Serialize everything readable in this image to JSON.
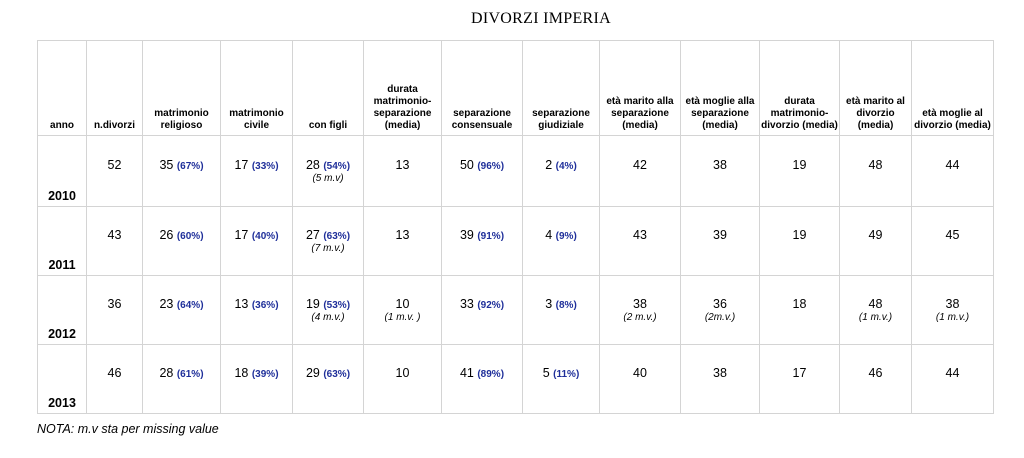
{
  "title": "DIVORZI IMPERIA",
  "headers": [
    "anno",
    "n.divorzi",
    "matrimonio religioso",
    "matrimonio civile",
    "con figli",
    "durata matrimonio-separazione (media)",
    "separazione consensuale",
    "separazione giudiziale",
    "età marito alla separazione (media)",
    "età moglie alla separazione (media)",
    "durata matrimonio-divorzio (media)",
    "età marito al divorzio (media)",
    "età moglie al divorzio (media)"
  ],
  "rows": [
    {
      "year": "2010",
      "n_divorzi": "52",
      "religioso": {
        "v": "35",
        "p": "(67%)"
      },
      "civile": {
        "v": "17",
        "p": "(33%)"
      },
      "con_figli": {
        "v": "28",
        "p": "(54%)",
        "note": "(5 m.v)"
      },
      "durata_sep": {
        "v": "13",
        "note": ""
      },
      "consensuale": {
        "v": "50",
        "p": "(96%)"
      },
      "giudiziale": {
        "v": "2",
        "p": "(4%)"
      },
      "eta_marito_sep": {
        "v": "42",
        "note": ""
      },
      "eta_moglie_sep": {
        "v": "38",
        "note": ""
      },
      "durata_div": "19",
      "eta_marito_div": {
        "v": "48",
        "note": ""
      },
      "eta_moglie_div": {
        "v": "44",
        "note": ""
      }
    },
    {
      "year": "2011",
      "n_divorzi": "43",
      "religioso": {
        "v": "26",
        "p": "(60%)"
      },
      "civile": {
        "v": "17",
        "p": "(40%)"
      },
      "con_figli": {
        "v": "27",
        "p": "(63%)",
        "note": "(7 m.v.)"
      },
      "durata_sep": {
        "v": "13",
        "note": ""
      },
      "consensuale": {
        "v": "39",
        "p": "(91%)"
      },
      "giudiziale": {
        "v": "4",
        "p": "(9%)"
      },
      "eta_marito_sep": {
        "v": "43",
        "note": ""
      },
      "eta_moglie_sep": {
        "v": "39",
        "note": ""
      },
      "durata_div": "19",
      "eta_marito_div": {
        "v": "49",
        "note": ""
      },
      "eta_moglie_div": {
        "v": "45",
        "note": ""
      }
    },
    {
      "year": "2012",
      "n_divorzi": "36",
      "religioso": {
        "v": "23",
        "p": "(64%)"
      },
      "civile": {
        "v": "13",
        "p": "(36%)"
      },
      "con_figli": {
        "v": "19",
        "p": "(53%)",
        "note": "(4 m.v.)"
      },
      "durata_sep": {
        "v": "10",
        "note": "(1 m.v. )"
      },
      "consensuale": {
        "v": "33",
        "p": "(92%)"
      },
      "giudiziale": {
        "v": "3",
        "p": "(8%)"
      },
      "eta_marito_sep": {
        "v": "38",
        "note": "(2 m.v.)"
      },
      "eta_moglie_sep": {
        "v": "36",
        "note": "(2m.v.)"
      },
      "durata_div": "18",
      "eta_marito_div": {
        "v": "48",
        "note": "(1 m.v.)"
      },
      "eta_moglie_div": {
        "v": "38",
        "note": "(1 m.v.)"
      }
    },
    {
      "year": "2013",
      "n_divorzi": "46",
      "religioso": {
        "v": "28",
        "p": "(61%)"
      },
      "civile": {
        "v": "18",
        "p": "(39%)"
      },
      "con_figli": {
        "v": "29",
        "p": "(63%)",
        "note": ""
      },
      "durata_sep": {
        "v": "10",
        "note": ""
      },
      "consensuale": {
        "v": "41",
        "p": "(89%)"
      },
      "giudiziale": {
        "v": "5",
        "p": "(11%)"
      },
      "eta_marito_sep": {
        "v": "40",
        "note": ""
      },
      "eta_moglie_sep": {
        "v": "38",
        "note": ""
      },
      "durata_div": "17",
      "eta_marito_div": {
        "v": "46",
        "note": ""
      },
      "eta_moglie_div": {
        "v": "44",
        "note": ""
      }
    }
  ],
  "footnote": "NOTA: m.v sta per missing value"
}
